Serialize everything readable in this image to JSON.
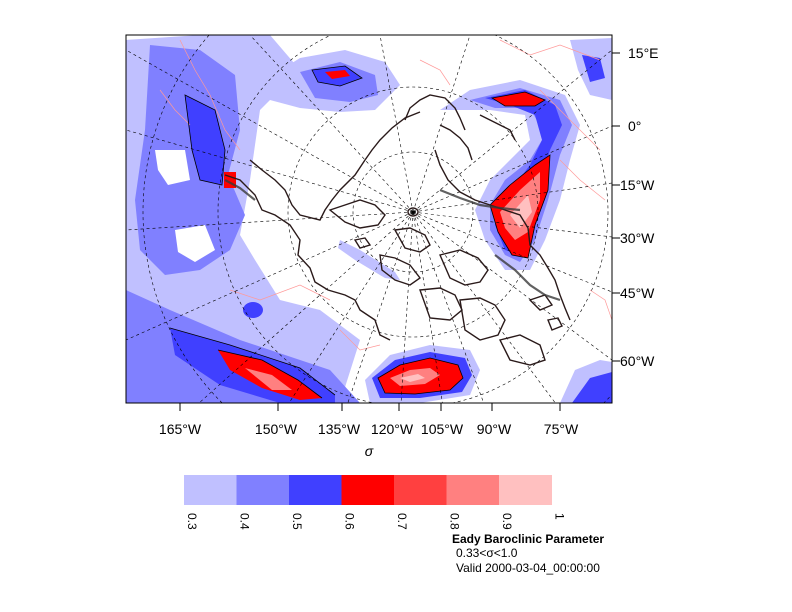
{
  "chart_data": {
    "type": "map-contour",
    "projection": "polar stereographic",
    "right_axis_labels": [
      "15°E",
      "0°",
      "15°W",
      "30°W",
      "45°W",
      "60°W"
    ],
    "bottom_axis_labels": [
      "165°W",
      "150°W",
      "135°W",
      "120°W",
      "105°W",
      "90°W",
      "75°W"
    ],
    "xlabel": "σ",
    "colorbar": {
      "levels": [
        "0.3",
        "0.4",
        "0.5",
        "0.6",
        "0.7",
        "0.8",
        "0.9",
        "1"
      ],
      "colors": [
        "#c0c0ff",
        "#8080ff",
        "#4040ff",
        "#ff0000",
        "#ff4040",
        "#ff8080",
        "#ffc0c0"
      ]
    },
    "title": "Eady Baroclinic Parameter",
    "subtitle": "0.33<σ<1.0",
    "valid": "Valid 2000-03-04_00:00:00"
  }
}
